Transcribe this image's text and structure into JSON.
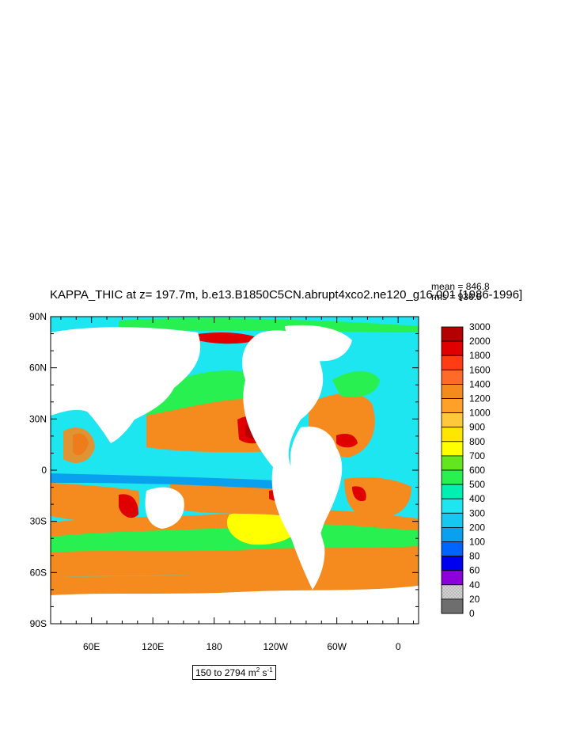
{
  "title": "KAPPA_THIC at z= 197.7m, b.e13.B1850C5CN.abrupt4xco2.ne120_g16.001 [1986-1996]",
  "stats": {
    "mean": "mean = 846.8",
    "rms": "rms = 936.5"
  },
  "range": {
    "text": "150 to 2794 m",
    "unit_m_exp": "2",
    "unit_s": " s",
    "unit_s_exp": "-1"
  },
  "map": {
    "lat_ticks": [
      "90N",
      "60N",
      "30N",
      "0",
      "30S",
      "60S",
      "90S"
    ],
    "lon_ticks": [
      "60E",
      "120E",
      "180",
      "120W",
      "60W",
      "0"
    ]
  },
  "colorbar": {
    "levels": [
      "3000",
      "2000",
      "1800",
      "1600",
      "1400",
      "1200",
      "1000",
      "900",
      "800",
      "700",
      "600",
      "500",
      "400",
      "300",
      "200",
      "100",
      "80",
      "60",
      "40",
      "20",
      "0"
    ],
    "colors": [
      "#b40000",
      "#e00000",
      "#ff3c14",
      "#ff6a28",
      "#f58a1e",
      "#ffa028",
      "#ffc83c",
      "#ffe600",
      "#ffff00",
      "#64e61e",
      "#28f050",
      "#00f0b4",
      "#1ee6f0",
      "#14c8f0",
      "#0aa0f0",
      "#0064ff",
      "#0000f0",
      "#8c00dc",
      "#e600e6",
      "#c8c8c8",
      "#6e6e6e"
    ]
  },
  "colors": {
    "ocean_background": "#1ee6f0",
    "land": "#ffffff"
  }
}
